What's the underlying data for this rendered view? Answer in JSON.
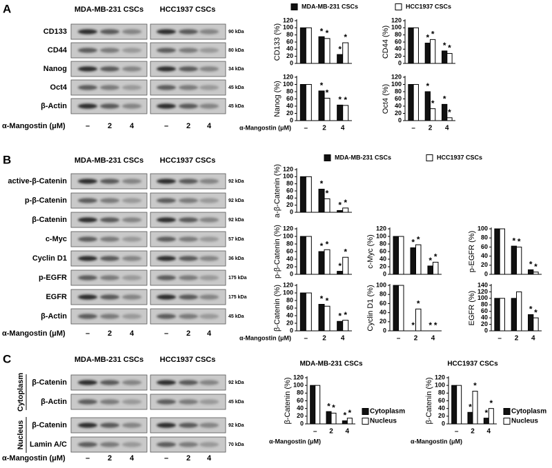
{
  "figure": {
    "panels": [
      {
        "letter": "A",
        "headers": [
          "MDA-MB-231 CSCs",
          "HCC1937 CSCs"
        ],
        "treatment_label": "α-Mangostin (μM)",
        "doses": [
          "–",
          "2",
          "4",
          "–",
          "2",
          "4"
        ],
        "blots": [
          {
            "label": "CD133",
            "kda": "90 kDa"
          },
          {
            "label": "CD44",
            "kda": "80 kDa"
          },
          {
            "label": "Nanog",
            "kda": "34 kDa"
          },
          {
            "label": "Oct4",
            "kda": "45 kDa"
          },
          {
            "label": "β-Actin",
            "kda": "45 kDa"
          }
        ]
      },
      {
        "letter": "B",
        "headers": [
          "MDA-MB-231 CSCs",
          "HCC1937 CSCs"
        ],
        "treatment_label": "α-Mangostin (μM)",
        "doses": [
          "–",
          "2",
          "4",
          "–",
          "2",
          "4"
        ],
        "blots": [
          {
            "label": "active-β-Catenin",
            "kda": "92 kDa"
          },
          {
            "label": "p-β-Catenin",
            "kda": "92 kDa"
          },
          {
            "label": "β-Catenin",
            "kda": "92 kDa"
          },
          {
            "label": "c-Myc",
            "kda": "57 kDa"
          },
          {
            "label": "Cyclin D1",
            "kda": "36 kDa"
          },
          {
            "label": "p-EGFR",
            "kda": "175 kDa"
          },
          {
            "label": "EGFR",
            "kda": "175 kDa"
          },
          {
            "label": "β-Actin",
            "kda": "45 kDa"
          }
        ]
      },
      {
        "letter": "C",
        "headers": [
          "MDA-MB-231 CSCs",
          "HCC1937 CSCs"
        ],
        "treatment_label": "α-Mangostin (μM)",
        "doses": [
          "–",
          "2",
          "4",
          "–",
          "2",
          "4"
        ],
        "blot_groups": [
          {
            "label": "Cytoplasm",
            "blots": [
              {
                "label": "β-Catenin",
                "kda": "92 kDa"
              },
              {
                "label": "β-Actin",
                "kda": "45 kDa"
              }
            ]
          },
          {
            "label": "Nucleus",
            "blots": [
              {
                "label": "β-Catenin",
                "kda": "92 kDa"
              },
              {
                "label": "Lamin A/C",
                "kda": "70 kDa"
              }
            ]
          }
        ]
      }
    ]
  },
  "chart_data": [
    {
      "type": "bar",
      "ylabel": "CD133 (%)",
      "categories": [
        null,
        null,
        null
      ],
      "ylim": [
        0,
        120
      ],
      "yticks": [
        0,
        20,
        40,
        60,
        80,
        100,
        120
      ],
      "legend": "top",
      "series": [
        {
          "name": "MDA-MB-231 CSCs",
          "color": "#111111",
          "values": [
            100,
            75,
            25
          ],
          "significance": [
            null,
            "*",
            "*"
          ]
        },
        {
          "name": "HCC1937 CSCs",
          "color": "#ffffff",
          "values": [
            100,
            70,
            58
          ],
          "significance": [
            null,
            "*",
            "*"
          ]
        }
      ]
    },
    {
      "type": "bar",
      "ylabel": "CD44 (%)",
      "categories": [
        null,
        null,
        null
      ],
      "ylim": [
        0,
        120
      ],
      "yticks": [
        0,
        20,
        40,
        60,
        80,
        100,
        120
      ],
      "series": [
        {
          "color": "#111111",
          "values": [
            100,
            57,
            35
          ],
          "significance": [
            null,
            "*",
            "*"
          ]
        },
        {
          "color": "#ffffff",
          "values": [
            100,
            67,
            28
          ],
          "significance": [
            null,
            "*",
            "*"
          ]
        }
      ]
    },
    {
      "type": "bar",
      "ylabel": "Nanog (%)",
      "xlabel": "α-Mangostin (μM)",
      "categories": [
        "–",
        "2",
        "4"
      ],
      "ylim": [
        0,
        120
      ],
      "yticks": [
        0,
        20,
        40,
        60,
        80,
        100,
        120
      ],
      "series": [
        {
          "color": "#111111",
          "values": [
            100,
            82,
            43
          ],
          "significance": [
            null,
            "*",
            "*"
          ]
        },
        {
          "color": "#ffffff",
          "values": [
            100,
            62,
            42
          ],
          "significance": [
            null,
            "*",
            "*"
          ]
        }
      ]
    },
    {
      "type": "bar",
      "ylabel": "Oct4 (%)",
      "categories": [
        "–",
        "2",
        "4"
      ],
      "ylim": [
        0,
        120
      ],
      "yticks": [
        0,
        20,
        40,
        60,
        80,
        100,
        120
      ],
      "series": [
        {
          "color": "#111111",
          "values": [
            100,
            80,
            45
          ],
          "significance": [
            null,
            "*",
            "*"
          ]
        },
        {
          "color": "#ffffff",
          "values": [
            100,
            33,
            8
          ],
          "significance": [
            null,
            "*",
            "*"
          ]
        }
      ]
    },
    {
      "type": "bar",
      "ylabel": "a-β-Catenin (%)",
      "categories": [
        null,
        null,
        null
      ],
      "ylim": [
        0,
        120
      ],
      "yticks": [
        0,
        20,
        40,
        60,
        80,
        100,
        120
      ],
      "legend": "top",
      "series": [
        {
          "name": "MDA-MB-231 CSCs",
          "color": "#111111",
          "values": [
            100,
            65,
            5
          ],
          "significance": [
            null,
            "*",
            "*"
          ]
        },
        {
          "name": "HCC1937 CSCs",
          "color": "#ffffff",
          "values": [
            100,
            38,
            12
          ],
          "significance": [
            null,
            "*",
            "*"
          ]
        }
      ]
    },
    {
      "type": "bar",
      "ylabel": "p-β-Catenin (%)",
      "categories": [
        null,
        null,
        null
      ],
      "ylim": [
        0,
        120
      ],
      "yticks": [
        0,
        20,
        40,
        60,
        80,
        100,
        120
      ],
      "series": [
        {
          "color": "#111111",
          "values": [
            100,
            60,
            8
          ],
          "significance": [
            null,
            "*",
            "*"
          ]
        },
        {
          "color": "#ffffff",
          "values": [
            100,
            65,
            45
          ],
          "significance": [
            null,
            "*",
            "*"
          ]
        }
      ]
    },
    {
      "type": "bar",
      "ylabel": "c-Myc (%)",
      "categories": [
        null,
        null,
        null
      ],
      "ylim": [
        0,
        120
      ],
      "yticks": [
        0,
        20,
        40,
        60,
        80,
        100,
        120
      ],
      "series": [
        {
          "color": "#111111",
          "values": [
            100,
            70,
            22
          ],
          "significance": [
            null,
            "*",
            "*"
          ]
        },
        {
          "color": "#ffffff",
          "values": [
            100,
            78,
            32
          ],
          "significance": [
            null,
            "*",
            "*"
          ]
        }
      ]
    },
    {
      "type": "bar",
      "ylabel": "p-EGFR (%)",
      "categories": [
        null,
        null,
        null
      ],
      "ylim": [
        0,
        100
      ],
      "yticks": [
        0,
        20,
        40,
        60,
        80,
        100
      ],
      "series": [
        {
          "color": "#111111",
          "values": [
            100,
            62,
            10
          ],
          "significance": [
            null,
            "*",
            "*"
          ]
        },
        {
          "color": "#ffffff",
          "values": [
            100,
            60,
            5
          ],
          "significance": [
            null,
            "*",
            "*"
          ]
        }
      ]
    },
    {
      "type": "bar",
      "ylabel": "β-Catenin (%)",
      "xlabel": "α-Mangostin (μM)",
      "categories": [
        "–",
        "2",
        "4"
      ],
      "ylim": [
        0,
        120
      ],
      "yticks": [
        0,
        20,
        40,
        60,
        80,
        100,
        120
      ],
      "series": [
        {
          "color": "#111111",
          "values": [
            100,
            70,
            25
          ],
          "significance": [
            null,
            "*",
            "*"
          ]
        },
        {
          "color": "#ffffff",
          "values": [
            100,
            65,
            28
          ],
          "significance": [
            null,
            "*",
            "*"
          ]
        }
      ]
    },
    {
      "type": "bar",
      "ylabel": "Cyclin D1 (%)",
      "categories": [
        "–",
        "2",
        "4"
      ],
      "ylim": [
        0,
        100
      ],
      "yticks": [
        0,
        20,
        40,
        60,
        80,
        100
      ],
      "series": [
        {
          "color": "#111111",
          "values": [
            100,
            0,
            0
          ],
          "significance": [
            null,
            "*",
            "*"
          ]
        },
        {
          "color": "#ffffff",
          "values": [
            100,
            48,
            0
          ],
          "significance": [
            null,
            "*",
            "*"
          ]
        }
      ]
    },
    {
      "type": "bar",
      "ylabel": "EGFR (%)",
      "categories": [
        "–",
        "2",
        "4"
      ],
      "ylim": [
        0,
        140
      ],
      "yticks": [
        0,
        20,
        40,
        60,
        80,
        100,
        120,
        140
      ],
      "series": [
        {
          "color": "#111111",
          "values": [
            100,
            100,
            50
          ],
          "significance": [
            null,
            null,
            "*"
          ]
        },
        {
          "color": "#ffffff",
          "values": [
            100,
            120,
            40
          ],
          "significance": [
            null,
            null,
            "*"
          ]
        }
      ]
    },
    {
      "type": "bar",
      "title": "MDA-MB-231 CSCs",
      "ylabel": "β-Catenin (%)",
      "xlabel": "α-Mangostin  (μM)",
      "categories": [
        "–",
        "2",
        "4"
      ],
      "ylim": [
        0,
        120
      ],
      "yticks": [
        0,
        20,
        40,
        60,
        80,
        100,
        120
      ],
      "legend": "right",
      "series": [
        {
          "name": "Cytoplasm",
          "color": "#111111",
          "values": [
            100,
            32,
            8
          ],
          "significance": [
            null,
            "*",
            "*"
          ]
        },
        {
          "name": "Nucleus",
          "color": "#ffffff",
          "values": [
            100,
            28,
            15
          ],
          "significance": [
            null,
            "*",
            "*"
          ]
        }
      ]
    },
    {
      "type": "bar",
      "title": "HCC1937 CSCs",
      "ylabel": "β-Catenin (%)",
      "xlabel": "α-Mangostin  (μM)",
      "categories": [
        "–",
        "2",
        "4"
      ],
      "ylim": [
        0,
        120
      ],
      "yticks": [
        0,
        20,
        40,
        60,
        80,
        100,
        120
      ],
      "legend": "right",
      "series": [
        {
          "name": "Cytoplasm",
          "color": "#111111",
          "values": [
            100,
            30,
            15
          ],
          "significance": [
            null,
            "*",
            "*"
          ]
        },
        {
          "name": "Nucleus",
          "color": "#ffffff",
          "values": [
            100,
            85,
            40
          ],
          "significance": [
            null,
            "*",
            "*"
          ]
        }
      ]
    }
  ]
}
